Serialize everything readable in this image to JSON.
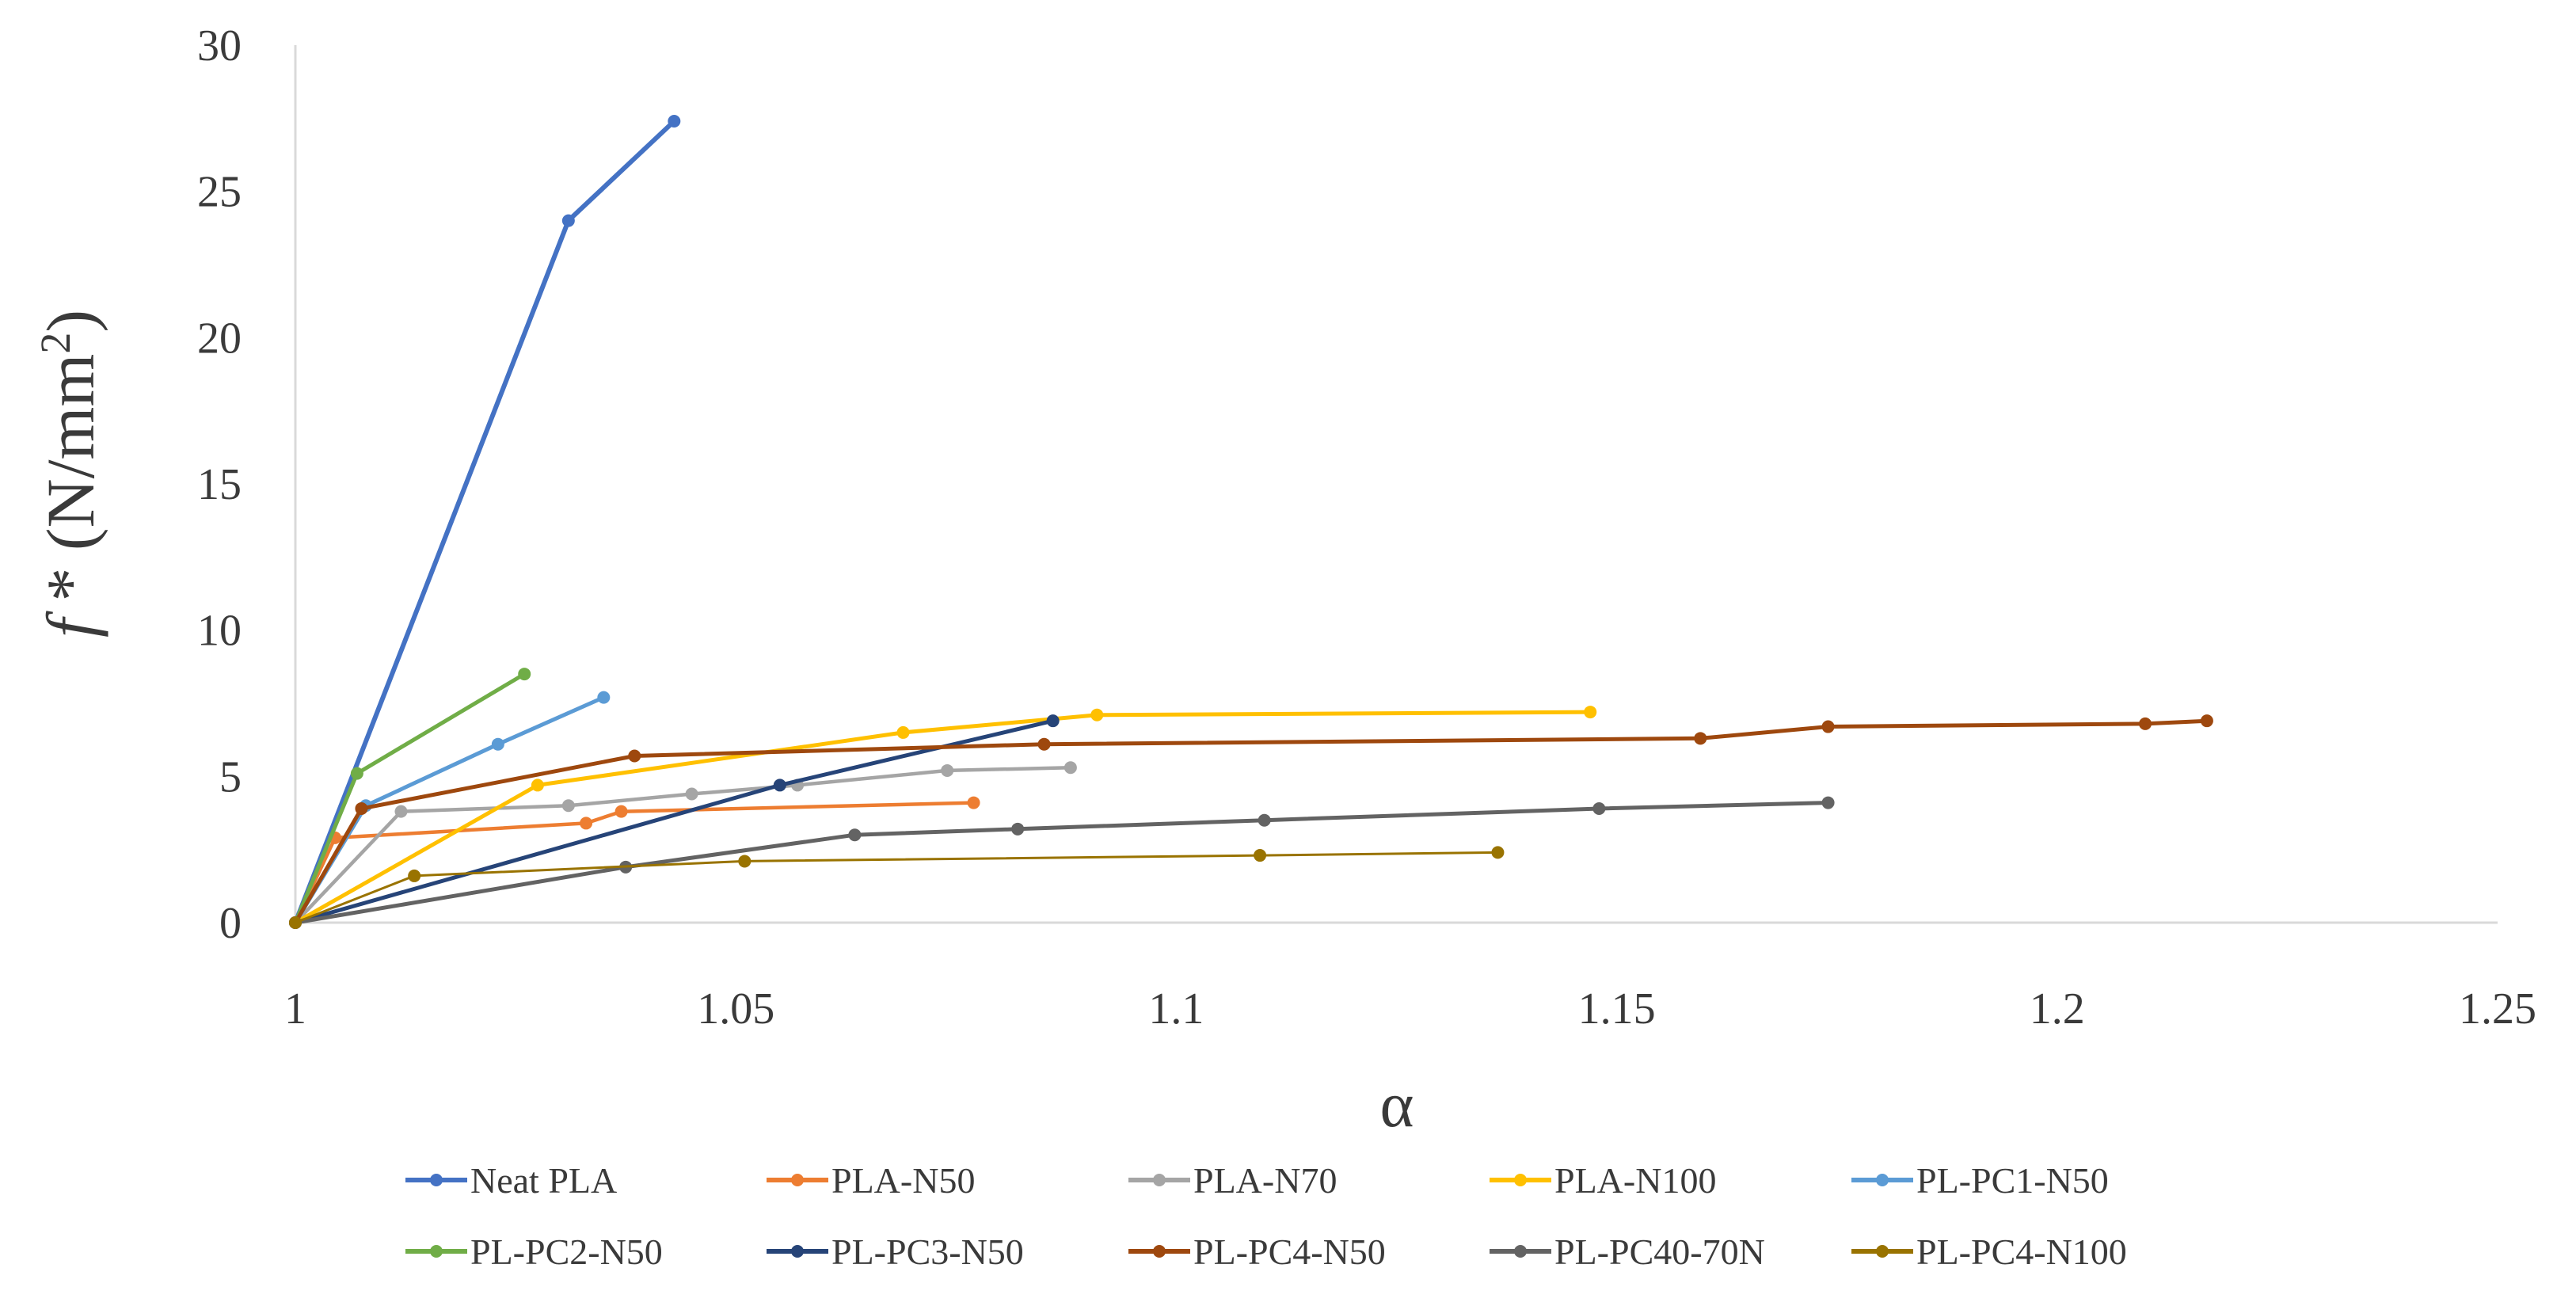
{
  "chart_data": {
    "type": "line",
    "title": "",
    "xlabel": "α",
    "ylabel_italic": "f",
    "ylabel_rest": " * (N/mm",
    "ylabel_sup": "2",
    "ylabel_close": ")",
    "xlim": [
      1,
      1.25
    ],
    "ylim": [
      0,
      30
    ],
    "xticks": [
      1,
      1.05,
      1.1,
      1.15,
      1.2,
      1.25
    ],
    "xtick_labels": [
      "1",
      "1.05",
      "1.1",
      "1.15",
      "1.2",
      "1.25"
    ],
    "yticks": [
      0,
      5,
      10,
      15,
      20,
      25,
      30
    ],
    "ytick_labels": [
      "0",
      "5",
      "10",
      "15",
      "20",
      "25",
      "30"
    ],
    "grid": false,
    "legend_position": "bottom",
    "series": [
      {
        "name": "Neat PLA",
        "color": "#4472C4",
        "width": 6,
        "x": [
          1,
          1.031,
          1.043
        ],
        "y": [
          0,
          24.0,
          27.4
        ]
      },
      {
        "name": "PLA-N50",
        "color": "#ED7D31",
        "width": 4.5,
        "x": [
          1,
          1.0045,
          1.033,
          1.037,
          1.077
        ],
        "y": [
          0,
          2.9,
          3.4,
          3.8,
          4.1
        ]
      },
      {
        "name": "PLA-N70",
        "color": "#A5A5A5",
        "width": 4.5,
        "x": [
          1,
          1.012,
          1.031,
          1.045,
          1.057,
          1.074,
          1.088
        ],
        "y": [
          0,
          3.8,
          4.0,
          4.4,
          4.7,
          5.2,
          5.3
        ]
      },
      {
        "name": "PLA-N100",
        "color": "#FFC000",
        "width": 5,
        "x": [
          1,
          1.0275,
          1.069,
          1.091,
          1.147
        ],
        "y": [
          0,
          4.7,
          6.5,
          7.1,
          7.2
        ]
      },
      {
        "name": "PL-PC1-N50",
        "color": "#5B9BD5",
        "width": 5,
        "x": [
          1,
          1.008,
          1.023,
          1.035
        ],
        "y": [
          0,
          4.0,
          6.1,
          7.7
        ]
      },
      {
        "name": "PL-PC2-N50",
        "color": "#70AD47",
        "width": 5,
        "x": [
          1,
          1.007,
          1.026
        ],
        "y": [
          0,
          5.1,
          8.5
        ]
      },
      {
        "name": "PL-PC3-N50",
        "color": "#264478",
        "width": 5,
        "x": [
          1,
          1.055,
          1.086
        ],
        "y": [
          0,
          4.7,
          6.9
        ]
      },
      {
        "name": "PL-PC4-N50",
        "color": "#9E480E",
        "width": 5,
        "x": [
          1,
          1.0075,
          1.0385,
          1.085,
          1.1595,
          1.174,
          1.21,
          1.217
        ],
        "y": [
          0,
          3.9,
          5.7,
          6.1,
          6.3,
          6.7,
          6.8,
          6.9
        ]
      },
      {
        "name": "PL-PC40-70N",
        "color": "#636363",
        "width": 5,
        "x": [
          1,
          1.0375,
          1.0635,
          1.082,
          1.11,
          1.148,
          1.174
        ],
        "y": [
          0,
          1.9,
          3.0,
          3.2,
          3.5,
          3.9,
          4.1
        ]
      },
      {
        "name": "PL-PC4-N100",
        "color": "#997300",
        "width": 3,
        "x": [
          1,
          1.0135,
          1.051,
          1.1095,
          1.1365
        ],
        "y": [
          0,
          1.6,
          2.1,
          2.3,
          2.4
        ]
      }
    ]
  }
}
